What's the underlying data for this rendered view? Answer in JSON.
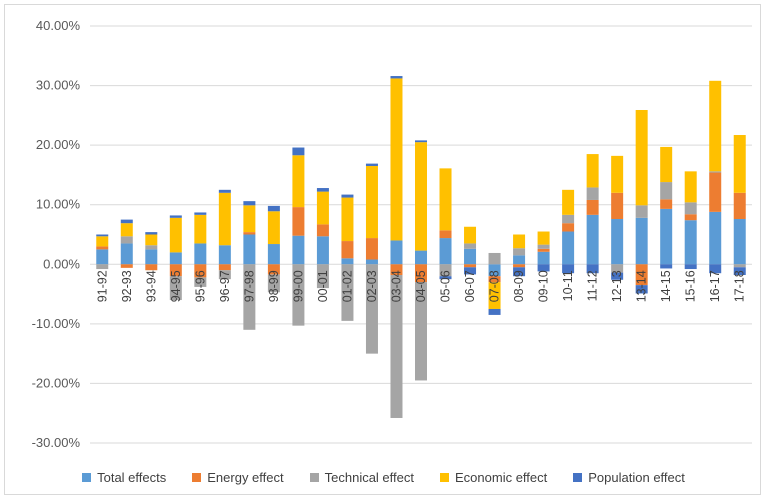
{
  "chart_data": {
    "type": "bar",
    "stacked": true,
    "title": "",
    "xlabel": "",
    "ylabel": "",
    "ylim": [
      -0.3,
      0.4
    ],
    "y_ticks": [
      -0.3,
      -0.2,
      -0.1,
      0.0,
      0.1,
      0.2,
      0.3,
      0.4
    ],
    "y_tick_labels": [
      "-30.00%",
      "-20.00%",
      "-10.00%",
      "0.00%",
      "10.00%",
      "20.00%",
      "30.00%",
      "40.00%"
    ],
    "grid": "horizontal",
    "legend_position": "bottom",
    "categories": [
      "91-92",
      "92-93",
      "93-94",
      "94-95",
      "95-96",
      "96-97",
      "97-98",
      "98-99",
      "99-00",
      "00-01",
      "01-02",
      "02-03",
      "03-04",
      "04-05",
      "05-06",
      "06-07",
      "07-08",
      "08-09",
      "09-10",
      "10-11",
      "11-12",
      "12-13",
      "13-14",
      "14-15",
      "15-16",
      "16-17",
      "17-18"
    ],
    "x_tick_labels": [
      "91-92",
      "92-93",
      "93-94",
      "94-95",
      "95-96",
      "96-97",
      "97-98",
      "98-99",
      "99-00",
      "00-01",
      "01-02",
      "02-03",
      "03-04",
      "04-05",
      "05-06",
      "06-07",
      "07-08",
      "08-09",
      "09-10",
      "10-11",
      "11-12",
      "12-13",
      "13-14",
      "14-15",
      "15-16",
      "16-17",
      "17-18"
    ],
    "series": [
      {
        "name": "Total effects",
        "color": "#5b9bd5",
        "values": [
          0.025,
          0.035,
          0.025,
          0.02,
          0.035,
          0.032,
          0.05,
          0.034,
          0.048,
          0.047,
          0.01,
          0.008,
          0.04,
          0.023,
          0.044,
          0.026,
          -0.02,
          0.015,
          0.021,
          0.055,
          0.083,
          0.076,
          0.078,
          0.093,
          0.074,
          0.088,
          0.076
        ]
      },
      {
        "name": "Energy effect",
        "color": "#ed7d31",
        "values": [
          0.005,
          -0.006,
          -0.01,
          -0.02,
          -0.022,
          -0.01,
          0.004,
          -0.017,
          0.048,
          0.02,
          0.029,
          0.036,
          -0.018,
          -0.03,
          0.013,
          -0.005,
          -0.01,
          -0.005,
          0.005,
          0.014,
          0.025,
          0.044,
          -0.035,
          0.016,
          0.01,
          0.066,
          0.044
        ]
      },
      {
        "name": "Technical effect",
        "color": "#a5a5a5",
        "values": [
          -0.008,
          0.012,
          0.007,
          -0.04,
          -0.016,
          -0.015,
          -0.11,
          -0.03,
          -0.103,
          -0.04,
          -0.095,
          -0.15,
          -0.24,
          -0.165,
          -0.02,
          0.009,
          0.019,
          0.012,
          0.007,
          0.014,
          0.021,
          -0.014,
          0.021,
          0.029,
          0.02,
          0.002,
          -0.005
        ]
      },
      {
        "name": "Economic effect",
        "color": "#ffc000",
        "values": [
          0.017,
          0.022,
          0.018,
          0.058,
          0.048,
          0.088,
          0.045,
          0.055,
          0.087,
          0.055,
          0.073,
          0.121,
          0.272,
          0.182,
          0.104,
          0.028,
          -0.045,
          0.023,
          0.022,
          0.042,
          0.056,
          0.062,
          0.16,
          0.059,
          0.052,
          0.152,
          0.097
        ]
      },
      {
        "name": "Population effect",
        "color": "#4472c4",
        "values": [
          0.003,
          0.006,
          0.004,
          0.004,
          0.004,
          0.005,
          0.007,
          0.009,
          0.013,
          0.006,
          0.005,
          0.004,
          0.004,
          0.003,
          -0.005,
          -0.012,
          -0.01,
          -0.015,
          -0.012,
          -0.015,
          -0.015,
          -0.012,
          -0.014,
          -0.007,
          -0.008,
          -0.015,
          -0.013
        ]
      }
    ]
  }
}
